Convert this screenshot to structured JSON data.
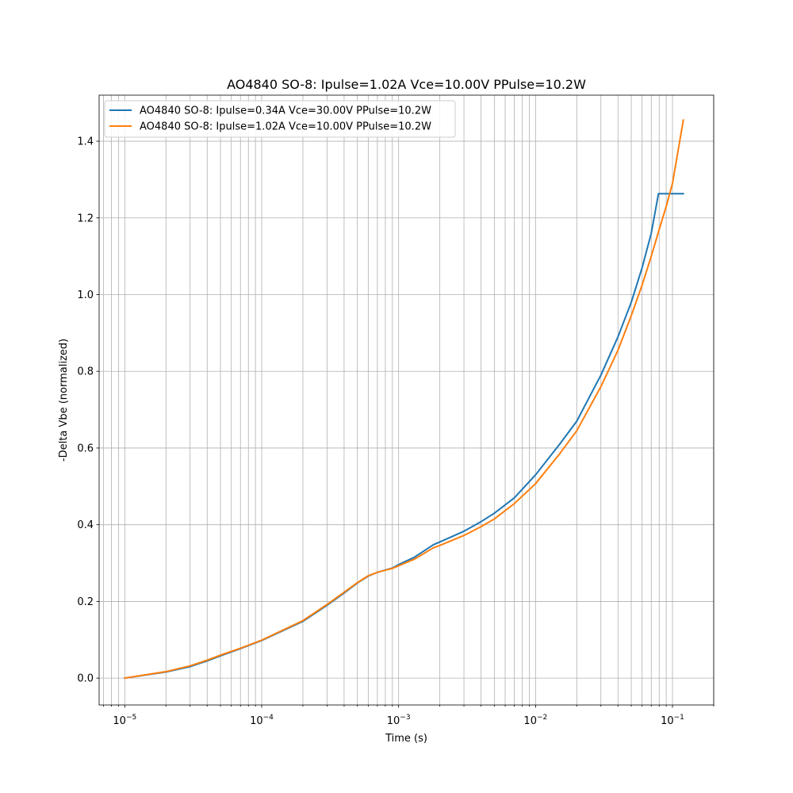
{
  "chart_data": {
    "type": "line",
    "title": "AO4840 SO-8: Ipulse=1.02A Vce=10.00V PPulse=10.2W",
    "xlabel": "Time (s)",
    "ylabel": "-Delta Vbe (normalized)",
    "xscale": "log",
    "xlim": [
      6.5e-06,
      0.2
    ],
    "ylim": [
      -0.07,
      1.52
    ],
    "grid": true,
    "legend_position": "top-left",
    "x_ticks": [
      {
        "value": 1e-05,
        "base": "10",
        "exp": "−5"
      },
      {
        "value": 0.0001,
        "base": "10",
        "exp": "−4"
      },
      {
        "value": 0.001,
        "base": "10",
        "exp": "−3"
      },
      {
        "value": 0.01,
        "base": "10",
        "exp": "−2"
      },
      {
        "value": 0.1,
        "base": "10",
        "exp": "−1"
      }
    ],
    "y_ticks": [
      {
        "value": 0.0,
        "label": "0.0"
      },
      {
        "value": 0.2,
        "label": "0.2"
      },
      {
        "value": 0.4,
        "label": "0.4"
      },
      {
        "value": 0.6,
        "label": "0.6"
      },
      {
        "value": 0.8,
        "label": "0.8"
      },
      {
        "value": 1.0,
        "label": "1.0"
      },
      {
        "value": 1.2,
        "label": "1.2"
      },
      {
        "value": 1.4,
        "label": "1.4"
      }
    ],
    "series": [
      {
        "name": "AO4840 SO-8: Ipulse=0.34A Vce=30.00V PPulse=10.2W",
        "color": "#1f77b4",
        "points": [
          [
            1e-05,
            0.0
          ],
          [
            2e-05,
            0.016
          ],
          [
            3e-05,
            0.03
          ],
          [
            4e-05,
            0.045
          ],
          [
            5e-05,
            0.058
          ],
          [
            7e-05,
            0.077
          ],
          [
            0.0001,
            0.098
          ],
          [
            0.0002,
            0.148
          ],
          [
            0.0003,
            0.19
          ],
          [
            0.0004,
            0.222
          ],
          [
            0.0005,
            0.248
          ],
          [
            0.0006,
            0.266
          ],
          [
            0.0007,
            0.276
          ],
          [
            0.0009,
            0.287
          ],
          [
            0.001,
            0.296
          ],
          [
            0.0013,
            0.315
          ],
          [
            0.0018,
            0.348
          ],
          [
            0.002,
            0.355
          ],
          [
            0.003,
            0.383
          ],
          [
            0.004,
            0.408
          ],
          [
            0.005,
            0.43
          ],
          [
            0.007,
            0.47
          ],
          [
            0.01,
            0.53
          ],
          [
            0.015,
            0.61
          ],
          [
            0.02,
            0.67
          ],
          [
            0.03,
            0.79
          ],
          [
            0.04,
            0.89
          ],
          [
            0.05,
            0.98
          ],
          [
            0.06,
            1.07
          ],
          [
            0.07,
            1.16
          ],
          [
            0.079,
            1.263
          ],
          [
            0.12,
            1.263
          ]
        ]
      },
      {
        "name": "AO4840 SO-8: Ipulse=1.02A Vce=10.00V PPulse=10.2W",
        "color": "#ff7f0e",
        "points": [
          [
            1e-05,
            0.0
          ],
          [
            2e-05,
            0.017
          ],
          [
            3e-05,
            0.032
          ],
          [
            4e-05,
            0.047
          ],
          [
            5e-05,
            0.06
          ],
          [
            7e-05,
            0.078
          ],
          [
            0.0001,
            0.099
          ],
          [
            0.0002,
            0.15
          ],
          [
            0.0003,
            0.192
          ],
          [
            0.0004,
            0.224
          ],
          [
            0.0005,
            0.249
          ],
          [
            0.0006,
            0.267
          ],
          [
            0.0007,
            0.276
          ],
          [
            0.0009,
            0.286
          ],
          [
            0.001,
            0.293
          ],
          [
            0.0013,
            0.31
          ],
          [
            0.0018,
            0.34
          ],
          [
            0.002,
            0.346
          ],
          [
            0.003,
            0.372
          ],
          [
            0.004,
            0.395
          ],
          [
            0.005,
            0.415
          ],
          [
            0.007,
            0.455
          ],
          [
            0.01,
            0.507
          ],
          [
            0.015,
            0.585
          ],
          [
            0.02,
            0.645
          ],
          [
            0.03,
            0.76
          ],
          [
            0.04,
            0.855
          ],
          [
            0.05,
            0.945
          ],
          [
            0.06,
            1.025
          ],
          [
            0.07,
            1.1
          ],
          [
            0.08,
            1.17
          ],
          [
            0.09,
            1.23
          ],
          [
            0.1,
            1.29
          ],
          [
            0.12,
            1.455
          ]
        ]
      }
    ]
  }
}
